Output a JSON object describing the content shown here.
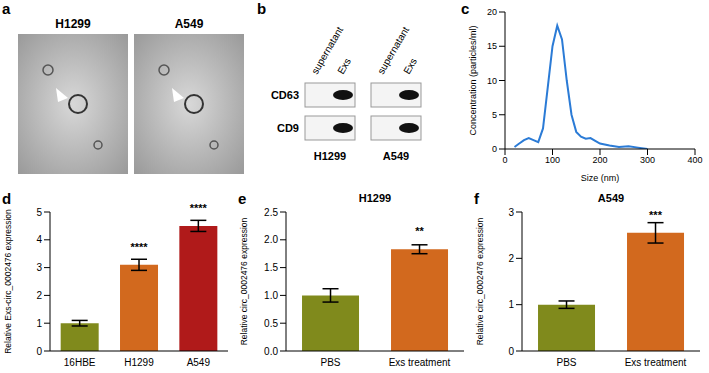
{
  "chart_data": [
    {
      "type": "image",
      "panel_label": "a",
      "images": [
        {
          "label": "H1299"
        },
        {
          "label": "A549"
        }
      ]
    },
    {
      "type": "blot",
      "panel_label": "b",
      "groups": [
        "H1299",
        "A549"
      ],
      "lanes": [
        "supernatant",
        "Exs",
        "supernatant",
        "Exs"
      ],
      "rows": [
        "CD63",
        "CD9"
      ],
      "bands": [
        [
          0,
          1,
          0,
          1
        ],
        [
          0,
          1,
          0,
          1
        ]
      ]
    },
    {
      "type": "line",
      "panel_label": "c",
      "xlabel": "Size (nm)",
      "ylabel": "Concentration (particles/ml)",
      "x": [
        20,
        30,
        40,
        50,
        60,
        70,
        80,
        90,
        100,
        110,
        120,
        130,
        140,
        150,
        160,
        170,
        180,
        190,
        200,
        220,
        240,
        260,
        280,
        300
      ],
      "values": [
        0.3,
        0.8,
        1.3,
        1.6,
        1.3,
        1.0,
        3,
        9,
        15,
        18,
        16,
        10,
        5,
        2.5,
        1.8,
        1.5,
        1.6,
        1.2,
        0.8,
        0.5,
        0.3,
        0.4,
        0.2,
        0
      ],
      "color": "#2b7bd6",
      "xlim": [
        0,
        400
      ],
      "xticks": [
        0,
        100,
        200,
        300,
        400
      ],
      "ylim": [
        0,
        20
      ],
      "yticks": [
        0,
        5,
        10,
        15,
        20
      ]
    },
    {
      "type": "bar",
      "panel_label": "d",
      "ylabel": "Relative Exs-circ_0002476 expression",
      "categories": [
        "16HBE",
        "H1299",
        "A549"
      ],
      "values": [
        1.0,
        3.1,
        4.5
      ],
      "errors": [
        0.1,
        0.2,
        0.2
      ],
      "annotations": [
        null,
        "****",
        "****"
      ],
      "colors": [
        "#808a1c",
        "#d2691e",
        "#b01a1a"
      ],
      "ylim": [
        0,
        5
      ],
      "yticks": [
        0,
        1,
        2,
        3,
        4,
        5
      ]
    },
    {
      "type": "bar",
      "panel_label": "e",
      "title": "H1299",
      "ylabel": "Relative circ_0002476 expression",
      "categories": [
        "PBS",
        "Exs treatment"
      ],
      "values": [
        1.0,
        1.83
      ],
      "errors": [
        0.12,
        0.08
      ],
      "annotations": [
        null,
        "**"
      ],
      "colors": [
        "#808a1c",
        "#d2691e"
      ],
      "ylim": [
        0,
        2.5
      ],
      "yticks": [
        {
          "value": 0,
          "label": "0.0"
        },
        0.5,
        {
          "value": 1,
          "label": "1.0"
        },
        1.5,
        {
          "value": 2,
          "label": "2.0"
        },
        2.5
      ]
    },
    {
      "type": "bar",
      "panel_label": "f",
      "title": "A549",
      "ylabel": "Relative circ_0002476 expression",
      "categories": [
        "PBS",
        "Exs treatment"
      ],
      "values": [
        1.0,
        2.55
      ],
      "errors": [
        0.08,
        0.22
      ],
      "annotations": [
        null,
        "***"
      ],
      "colors": [
        "#808a1c",
        "#d2691e"
      ],
      "ylim": [
        0,
        3
      ],
      "yticks": [
        0,
        1,
        2,
        3
      ]
    }
  ]
}
